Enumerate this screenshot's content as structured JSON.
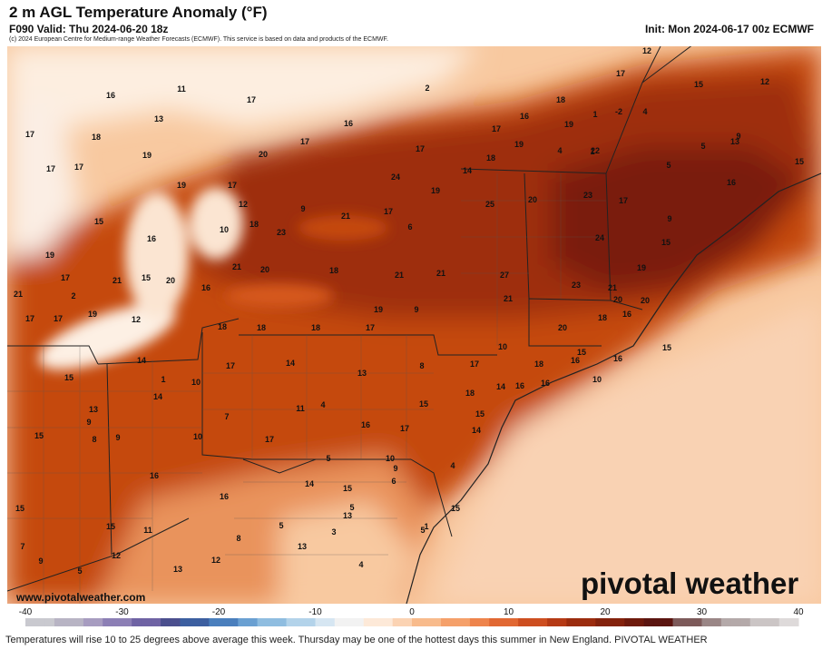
{
  "header": {
    "title": "2 m AGL Temperature Anomaly (°F)",
    "valid": "F090 Valid: Thu 2024-06-20 18z",
    "init": "Init: Mon 2024-06-17 00z ECMWF",
    "copyright": "(c) 2024 European Centre for Medium-range Weather Forecasts (ECMWF). This service is based on data and products of the ECMWF."
  },
  "footer": {
    "url": "www.pivotalweather.com",
    "watermark": "pivotal weather",
    "caption": "Temperatures will rise 10 to 25 degrees above average this week. Thursday may be one of the hottest days this summer in New England. PIVOTAL WEATHER"
  },
  "colorbar": {
    "ticks": [
      "-40",
      "-30",
      "-20",
      "-10",
      "0",
      "10",
      "20",
      "30",
      "40"
    ],
    "min": -40,
    "max": 40
  },
  "map_labels": {
    "values": [
      "12",
      "17",
      "15",
      "12",
      "2",
      "11",
      "16",
      "17",
      "18",
      "1",
      "-2",
      "4",
      "13",
      "17",
      "16",
      "18",
      "17",
      "19",
      "22",
      "5",
      "9",
      "13",
      "17",
      "16",
      "17",
      "18",
      "19",
      "4",
      "1",
      "17",
      "19",
      "20",
      "24",
      "5",
      "15",
      "17",
      "19",
      "17",
      "14",
      "19",
      "20",
      "23",
      "17",
      "16",
      "12",
      "9",
      "21",
      "17",
      "25",
      "9",
      "15",
      "16",
      "18",
      "10",
      "6",
      "23",
      "24",
      "15",
      "15",
      "20",
      "19",
      "17",
      "21",
      "21",
      "20",
      "21",
      "21",
      "27",
      "19",
      "18",
      "21",
      "2",
      "20",
      "21",
      "23",
      "21",
      "20",
      "17",
      "17",
      "16",
      "19",
      "19",
      "9",
      "12",
      "18",
      "18",
      "18",
      "17",
      "20",
      "18",
      "16",
      "15",
      "10",
      "17",
      "18",
      "14",
      "15",
      "17",
      "14",
      "13",
      "8",
      "1",
      "10",
      "15",
      "16",
      "16",
      "16",
      "14",
      "13",
      "7",
      "11",
      "4",
      "17",
      "15",
      "16",
      "18",
      "14",
      "10",
      "15",
      "14",
      "16",
      "10",
      "9",
      "9",
      "17",
      "15",
      "8",
      "16",
      "15",
      "14",
      "9",
      "5",
      "4",
      "15",
      "10",
      "6",
      "1",
      "15",
      "16",
      "5",
      "15",
      "13",
      "8",
      "5",
      "5",
      "4",
      "13",
      "12",
      "11",
      "7",
      "9",
      "5",
      "12",
      "13",
      "3"
    ]
  },
  "colors": {
    "warm_dark": "#7a1f0a",
    "warm_mid": "#c2410c",
    "warm_light": "#f5b58a",
    "neutral": "#fdf1e6",
    "cool": "#dde7f0"
  }
}
